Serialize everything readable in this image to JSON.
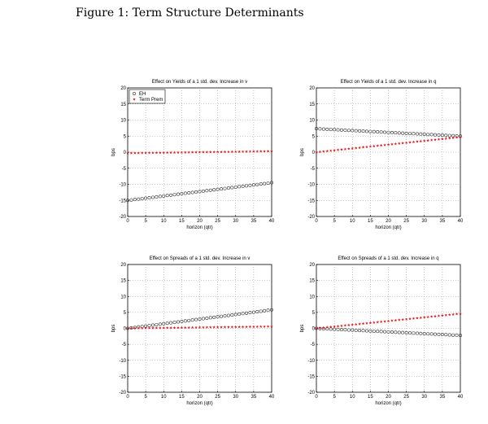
{
  "figure": {
    "caption": "Figure 1: Term Structure Determinants"
  },
  "colors": {
    "eh": "#333333",
    "term_prem": "#e02020",
    "grid": "#999999",
    "axis": "#000000"
  },
  "chart_data": [
    {
      "type": "scatter",
      "title": "Effect on Yields of a 1 std. dev. Increase in v",
      "xlabel": "horizon (qtr)",
      "ylabel": "bps",
      "xlim": [
        0,
        40
      ],
      "ylim": [
        -20,
        20
      ],
      "xticks": [
        "0",
        "5",
        "10",
        "15",
        "20",
        "25",
        "30",
        "35",
        "40"
      ],
      "yticks": [
        "20",
        "15",
        "10",
        "5",
        "0",
        "-5",
        "-10",
        "-15",
        "-20"
      ],
      "grid": true,
      "legend": {
        "placement": "top-left",
        "entries": [
          "EH",
          "Term Prem"
        ]
      },
      "series": [
        {
          "name": "EH",
          "marker": "circle",
          "x_start": 0,
          "x_end": 40,
          "y_start": -15.0,
          "y_end": -9.5
        },
        {
          "name": "Term Prem",
          "marker": "star",
          "x_start": 0,
          "x_end": 40,
          "y_start": -0.3,
          "y_end": 0.3
        }
      ]
    },
    {
      "type": "scatter",
      "title": "Effect on Yields of a 1 std. dev. Increase in q",
      "xlabel": "horizon (qtr)",
      "ylabel": "bps",
      "xlim": [
        0,
        40
      ],
      "ylim": [
        -20,
        20
      ],
      "xticks": [
        "0",
        "5",
        "10",
        "15",
        "20",
        "25",
        "30",
        "35",
        "40"
      ],
      "yticks": [
        "20",
        "15",
        "10",
        "5",
        "0",
        "-5",
        "-10",
        "-15",
        "-20"
      ],
      "grid": true,
      "series": [
        {
          "name": "EH",
          "marker": "circle",
          "x_start": 0,
          "x_end": 40,
          "y_start": 7.3,
          "y_end": 5.0
        },
        {
          "name": "Term Prem",
          "marker": "star",
          "x_start": 0,
          "x_end": 40,
          "y_start": 0.0,
          "y_end": 4.7
        }
      ]
    },
    {
      "type": "scatter",
      "title": "Effect on Spreads of a 1 std. dev. Increase in v",
      "xlabel": "horizon (qtr)",
      "ylabel": "bps",
      "xlim": [
        0,
        40
      ],
      "ylim": [
        -20,
        20
      ],
      "xticks": [
        "0",
        "5",
        "10",
        "15",
        "20",
        "25",
        "30",
        "35",
        "40"
      ],
      "yticks": [
        "20",
        "15",
        "10",
        "5",
        "0",
        "-5",
        "-10",
        "-15",
        "-20"
      ],
      "grid": true,
      "series": [
        {
          "name": "EH",
          "marker": "circle",
          "x_start": 0,
          "x_end": 40,
          "y_start": 0.0,
          "y_end": 5.8
        },
        {
          "name": "Term Prem",
          "marker": "star",
          "x_start": 0,
          "x_end": 40,
          "y_start": 0.0,
          "y_end": 0.6
        }
      ]
    },
    {
      "type": "scatter",
      "title": "Effect on Spreads of a 1 std. dev. Increase in q",
      "xlabel": "horizon (qtr)",
      "ylabel": "bps",
      "xlim": [
        0,
        40
      ],
      "ylim": [
        -20,
        20
      ],
      "xticks": [
        "0",
        "5",
        "10",
        "15",
        "20",
        "25",
        "30",
        "35",
        "40"
      ],
      "yticks": [
        "20",
        "15",
        "10",
        "5",
        "0",
        "-5",
        "-10",
        "-15",
        "-20"
      ],
      "grid": true,
      "series": [
        {
          "name": "EH",
          "marker": "circle",
          "x_start": 0,
          "x_end": 40,
          "y_start": 0.0,
          "y_end": -2.2
        },
        {
          "name": "Term Prem",
          "marker": "star",
          "x_start": 0,
          "x_end": 40,
          "y_start": 0.0,
          "y_end": 4.6
        }
      ]
    }
  ]
}
